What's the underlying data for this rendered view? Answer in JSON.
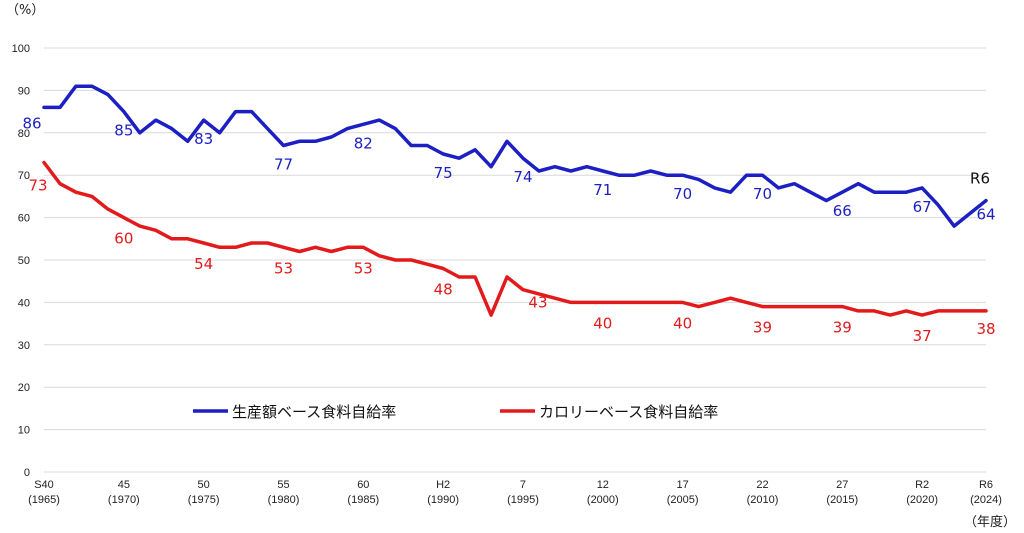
{
  "chart_data": {
    "type": "line",
    "y_unit": "（%）",
    "x_unit": "（年度）",
    "ylim": [
      0,
      100
    ],
    "y_ticks": [
      0,
      10,
      20,
      30,
      40,
      50,
      60,
      70,
      80,
      90,
      100
    ],
    "grid": true,
    "legend_position": "lower-left",
    "x_tick_labels": [
      {
        "year": 1965,
        "line1": "S40",
        "line2": "(1965)"
      },
      {
        "year": 1970,
        "line1": "45",
        "line2": "(1970)"
      },
      {
        "year": 1975,
        "line1": "50",
        "line2": "(1975)"
      },
      {
        "year": 1980,
        "line1": "55",
        "line2": "(1980)"
      },
      {
        "year": 1985,
        "line1": "60",
        "line2": "(1985)"
      },
      {
        "year": 1990,
        "line1": "H2",
        "line2": "(1990)"
      },
      {
        "year": 1995,
        "line1": "7",
        "line2": "(1995)"
      },
      {
        "year": 2000,
        "line1": "12",
        "line2": "(2000)"
      },
      {
        "year": 2005,
        "line1": "17",
        "line2": "(2005)"
      },
      {
        "year": 2010,
        "line1": "22",
        "line2": "(2010)"
      },
      {
        "year": 2015,
        "line1": "27",
        "line2": "(2015)"
      },
      {
        "year": 2020,
        "line1": "R2",
        "line2": "(2020)"
      },
      {
        "year": 2024,
        "line1": "R6",
        "line2": "(2024)"
      }
    ],
    "x": [
      1965,
      1966,
      1967,
      1968,
      1969,
      1970,
      1971,
      1972,
      1973,
      1974,
      1975,
      1976,
      1977,
      1978,
      1979,
      1980,
      1981,
      1982,
      1983,
      1984,
      1985,
      1986,
      1987,
      1988,
      1989,
      1990,
      1991,
      1992,
      1993,
      1994,
      1995,
      1996,
      1997,
      1998,
      1999,
      2000,
      2001,
      2002,
      2003,
      2004,
      2005,
      2006,
      2007,
      2008,
      2009,
      2010,
      2011,
      2012,
      2013,
      2014,
      2015,
      2016,
      2017,
      2018,
      2019,
      2020,
      2021,
      2022,
      2023,
      2024
    ],
    "series": [
      {
        "name": "生産額ベース食料自給率",
        "color": "#1c1fc2",
        "values": [
          86,
          86,
          91,
          91,
          89,
          85,
          80,
          83,
          81,
          78,
          83,
          80,
          85,
          85,
          81,
          77,
          78,
          78,
          79,
          81,
          82,
          83,
          81,
          77,
          77,
          75,
          74,
          76,
          72,
          78,
          74,
          71,
          72,
          71,
          72,
          71,
          70,
          70,
          71,
          70,
          70,
          69,
          67,
          66,
          70,
          70,
          67,
          68,
          66,
          64,
          66,
          68,
          66,
          66,
          66,
          67,
          63,
          58,
          61,
          64
        ]
      },
      {
        "name": "カロリーベース食料自給率",
        "color": "#e31a1c",
        "values": [
          73,
          68,
          66,
          65,
          62,
          60,
          58,
          57,
          55,
          55,
          54,
          53,
          53,
          54,
          54,
          53,
          52,
          53,
          52,
          53,
          53,
          51,
          50,
          50,
          49,
          48,
          46,
          46,
          37,
          46,
          43,
          42,
          41,
          40,
          40,
          40,
          40,
          40,
          40,
          40,
          40,
          39,
          40,
          41,
          40,
          39,
          39,
          39,
          39,
          39,
          39,
          38,
          38,
          37,
          38,
          37,
          38,
          38,
          38,
          38
        ]
      }
    ],
    "annotations": {
      "blue": [
        {
          "year": 1965,
          "value": 86,
          "text": "86"
        },
        {
          "year": 1970,
          "value": 85,
          "text": "85"
        },
        {
          "year": 1975,
          "value": 83,
          "text": "83"
        },
        {
          "year": 1980,
          "value": 77,
          "text": "77"
        },
        {
          "year": 1985,
          "value": 82,
          "text": "82"
        },
        {
          "year": 1990,
          "value": 75,
          "text": "75"
        },
        {
          "year": 1995,
          "value": 74,
          "text": "74"
        },
        {
          "year": 2000,
          "value": 71,
          "text": "71"
        },
        {
          "year": 2005,
          "value": 70,
          "text": "70"
        },
        {
          "year": 2010,
          "value": 70,
          "text": "70"
        },
        {
          "year": 2015,
          "value": 66,
          "text": "66"
        },
        {
          "year": 2020,
          "value": 67,
          "text": "67"
        },
        {
          "year": 2024,
          "value": 64,
          "text": "64"
        }
      ],
      "red": [
        {
          "year": 1965,
          "value": 73,
          "text": "73"
        },
        {
          "year": 1970,
          "value": 60,
          "text": "60"
        },
        {
          "year": 1975,
          "value": 54,
          "text": "54"
        },
        {
          "year": 1980,
          "value": 53,
          "text": "53"
        },
        {
          "year": 1985,
          "value": 53,
          "text": "53"
        },
        {
          "year": 1990,
          "value": 48,
          "text": "48"
        },
        {
          "year": 1995,
          "value": 43,
          "text": "43"
        },
        {
          "year": 2000,
          "value": 40,
          "text": "40"
        },
        {
          "year": 2005,
          "value": 40,
          "text": "40"
        },
        {
          "year": 2010,
          "value": 39,
          "text": "39"
        },
        {
          "year": 2015,
          "value": 39,
          "text": "39"
        },
        {
          "year": 2020,
          "value": 37,
          "text": "37"
        },
        {
          "year": 2024,
          "value": 38,
          "text": "38"
        }
      ],
      "r6_label": "R6"
    }
  }
}
